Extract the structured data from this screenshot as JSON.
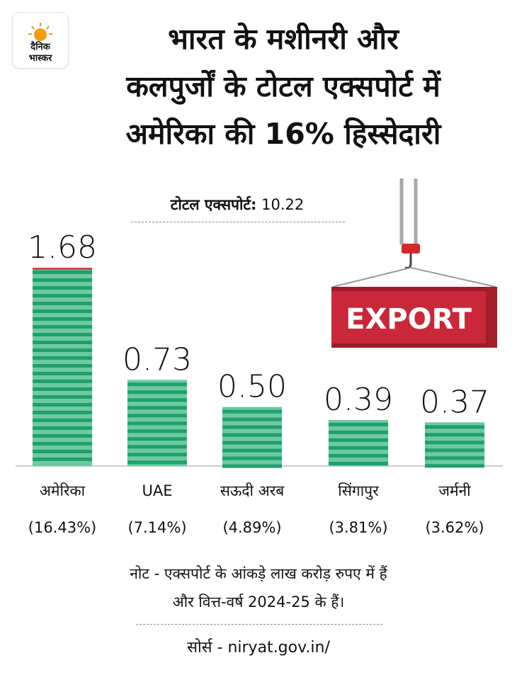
{
  "brand": {
    "name_line1": "दैनिक",
    "name_line2": "भास्कर"
  },
  "title_lines": [
    "भारत के मशीनरी और",
    "कलपुर्जों के टोटल एक्सपोर्ट में",
    "अमेरिका की 16% हिस्सेदारी"
  ],
  "total": {
    "label": "टोटल एक्सपोर्ट:",
    "value": "10.22"
  },
  "illustration": {
    "container_text": "EXPORT",
    "container_color": "#c8283a",
    "hook_color": "#d62a2a"
  },
  "colors": {
    "bar_dark": "#1f9e6e",
    "bar_light": "#6cc9a0",
    "highlight_cap": "#e0404a",
    "axis": "#9a9a9a"
  },
  "chart_data": {
    "type": "bar",
    "categories": [
      "अमेरिका",
      "UAE",
      "सऊदी अरब",
      "सिंगापुर",
      "जर्मनी"
    ],
    "share_labels": [
      "(16.43%)",
      "(7.14%)",
      "(4.89%)",
      "(3.81%)",
      "(3.62%)"
    ],
    "values": [
      1.68,
      0.73,
      0.5,
      0.39,
      0.37
    ],
    "value_labels": [
      "1.68",
      "0.73",
      "0.50",
      "0.39",
      "0.37"
    ],
    "ylim": [
      0,
      1.68
    ],
    "grid": false,
    "legend": "none"
  },
  "notes": {
    "line1": "नोट - एक्सपोर्ट के आंकड़े लाख करोड़ रुपए में हैं",
    "line2": "और वित्त-वर्ष 2024-25 के हैं।"
  },
  "source": "सोर्स - niryat.gov.in/"
}
